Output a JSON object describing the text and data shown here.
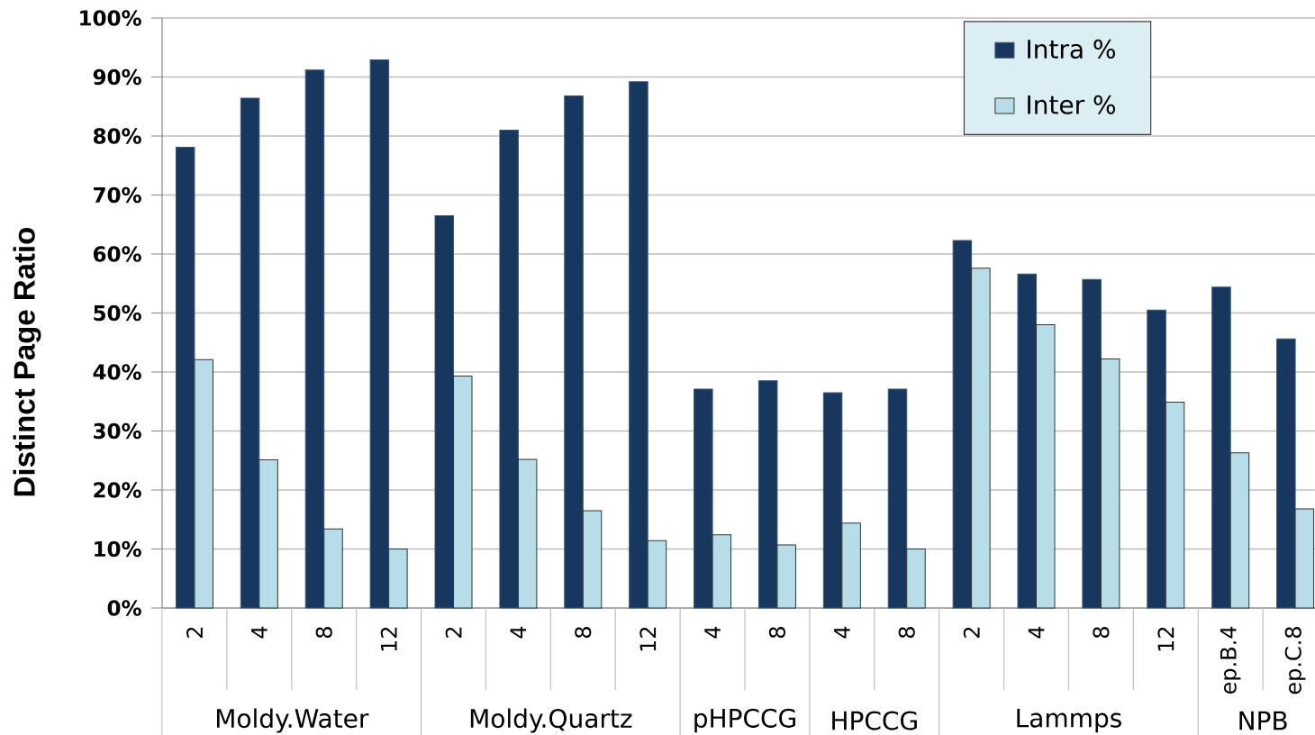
{
  "chart_data": {
    "type": "bar",
    "ylabel": "Distinct Page Ratio",
    "categories": [
      "2",
      "4",
      "8",
      "12",
      "2",
      "4",
      "8",
      "12",
      "4",
      "8",
      "4",
      "8",
      "2",
      "4",
      "8",
      "12",
      "ep.B.4",
      "ep.C.8"
    ],
    "annotations": [
      "Moldy.Water",
      "Moldy.Quartz",
      "pHPCCG",
      "HPCCG",
      "Lammps",
      "NPB"
    ],
    "series": [
      {
        "name": "Intra %",
        "color": "#17375e",
        "values": [
          78.1,
          86.4,
          91.2,
          92.9,
          66.5,
          81.0,
          86.8,
          89.2,
          37.1,
          38.5,
          36.5,
          37.1,
          62.3,
          56.6,
          55.7,
          50.5,
          54.4,
          45.6
        ]
      },
      {
        "name": "Inter %",
        "color": "#b7dee8",
        "values": [
          42.1,
          25.1,
          13.4,
          10.0,
          39.3,
          25.2,
          16.5,
          11.4,
          12.4,
          10.7,
          14.4,
          10.0,
          57.6,
          48.0,
          42.2,
          34.9,
          26.3,
          16.8
        ]
      }
    ],
    "ylim": [
      0,
      100
    ],
    "yticks": [
      {
        "value": 0,
        "label": "0%"
      },
      {
        "value": 10,
        "label": "10%"
      },
      {
        "value": 20,
        "label": "20%"
      },
      {
        "value": 30,
        "label": "30%"
      },
      {
        "value": 40,
        "label": "40%"
      },
      {
        "value": 50,
        "label": "50%"
      },
      {
        "value": 60,
        "label": "60%"
      },
      {
        "value": 70,
        "label": "70%"
      },
      {
        "value": 80,
        "label": "80%"
      },
      {
        "value": 90,
        "label": "90%"
      },
      {
        "value": 100,
        "label": "100%"
      }
    ],
    "grid": "y",
    "legend": "top right"
  }
}
